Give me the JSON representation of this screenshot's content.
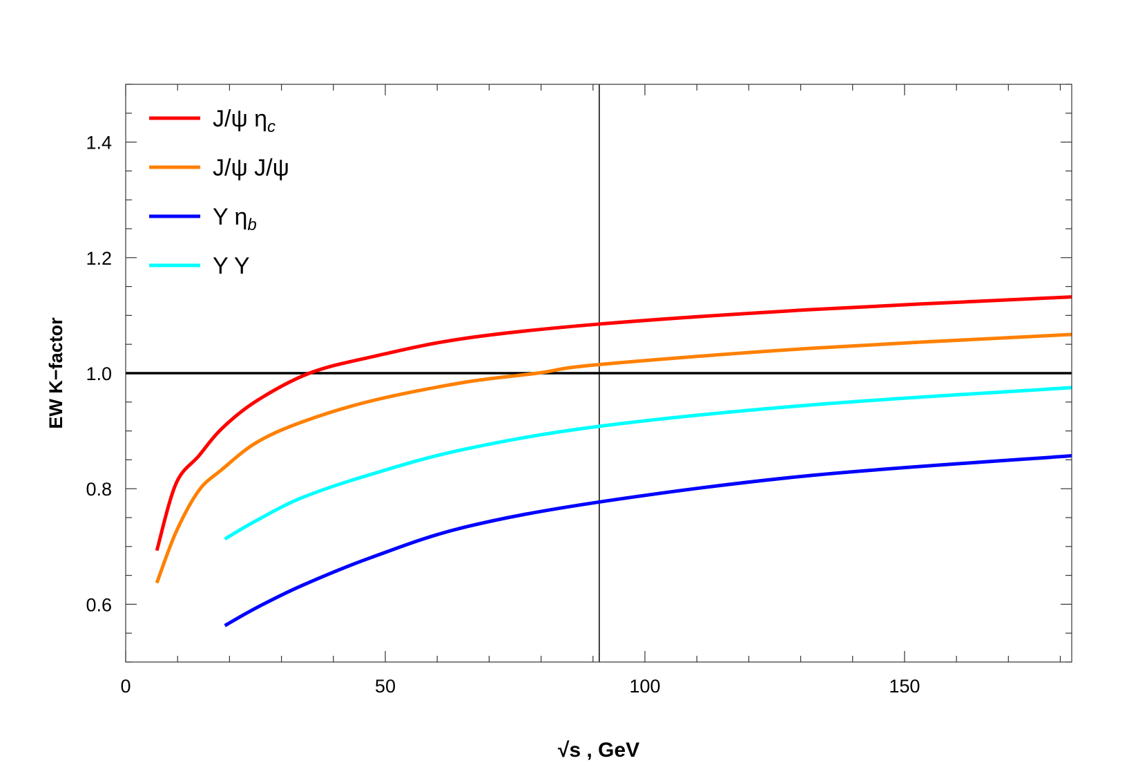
{
  "chart_data": {
    "type": "line",
    "title": "",
    "xlabel": "√s , GeV",
    "xlabel_parts": {
      "root": "√",
      "var": "s",
      "unit": ", GeV"
    },
    "ylabel": "EW K−factor",
    "xlim": [
      0,
      182.2
    ],
    "ylim": [
      0.5,
      1.5
    ],
    "xticks": [
      0,
      50,
      100,
      150
    ],
    "xtick_labels": [
      "0",
      "50",
      "100",
      "150"
    ],
    "yticks": [
      0.6,
      0.8,
      1.0,
      1.2,
      1.4
    ],
    "ytick_labels": [
      "0.6",
      "0.8",
      "1.0",
      "1.2",
      "1.4"
    ],
    "x_minor_step": 10,
    "y_minor_step": 0.05,
    "grid": false,
    "legend_position": "top-left",
    "reference_lines": {
      "horizontal_y": 1.0,
      "vertical_x": 91.2
    },
    "series": [
      {
        "name": "J/ψ ηc",
        "label_main": "J/ψ η",
        "label_sub": "c",
        "color": "#ff0000",
        "x": [
          6.0,
          9.7,
          14.1,
          18.5,
          25.2,
          35.4,
          47.3,
          65.1,
          91.2,
          132,
          182.2
        ],
        "y": [
          0.693,
          0.809,
          0.857,
          0.904,
          0.952,
          1.0,
          1.028,
          1.06,
          1.085,
          1.11,
          1.132
        ]
      },
      {
        "name": "J/ψ J/ψ",
        "label_main": "J/ψ J/ψ",
        "label_sub": "",
        "color": "#ff8000",
        "x": [
          6.0,
          9.7,
          14.1,
          18.5,
          25.2,
          34.1,
          47.3,
          65.1,
          79.3,
          91.2,
          132,
          182.2
        ],
        "y": [
          0.637,
          0.725,
          0.797,
          0.833,
          0.88,
          0.916,
          0.952,
          0.984,
          1.0,
          1.015,
          1.043,
          1.067
        ]
      },
      {
        "name": "Υ ηb",
        "label_main": "Υ η",
        "label_sub": "b",
        "color": "#0000ff",
        "x": [
          19.1,
          25.2,
          34.1,
          47.3,
          65.1,
          91.2,
          132,
          182.2
        ],
        "y": [
          0.563,
          0.594,
          0.633,
          0.681,
          0.733,
          0.777,
          0.823,
          0.857
        ]
      },
      {
        "name": "Υ Υ",
        "label_main": "Υ Υ",
        "label_sub": "",
        "color": "#00ffff",
        "x": [
          19.1,
          25.2,
          34.1,
          47.3,
          65.1,
          91.2,
          132,
          182.2
        ],
        "y": [
          0.713,
          0.745,
          0.785,
          0.825,
          0.868,
          0.908,
          0.945,
          0.975
        ]
      }
    ]
  }
}
